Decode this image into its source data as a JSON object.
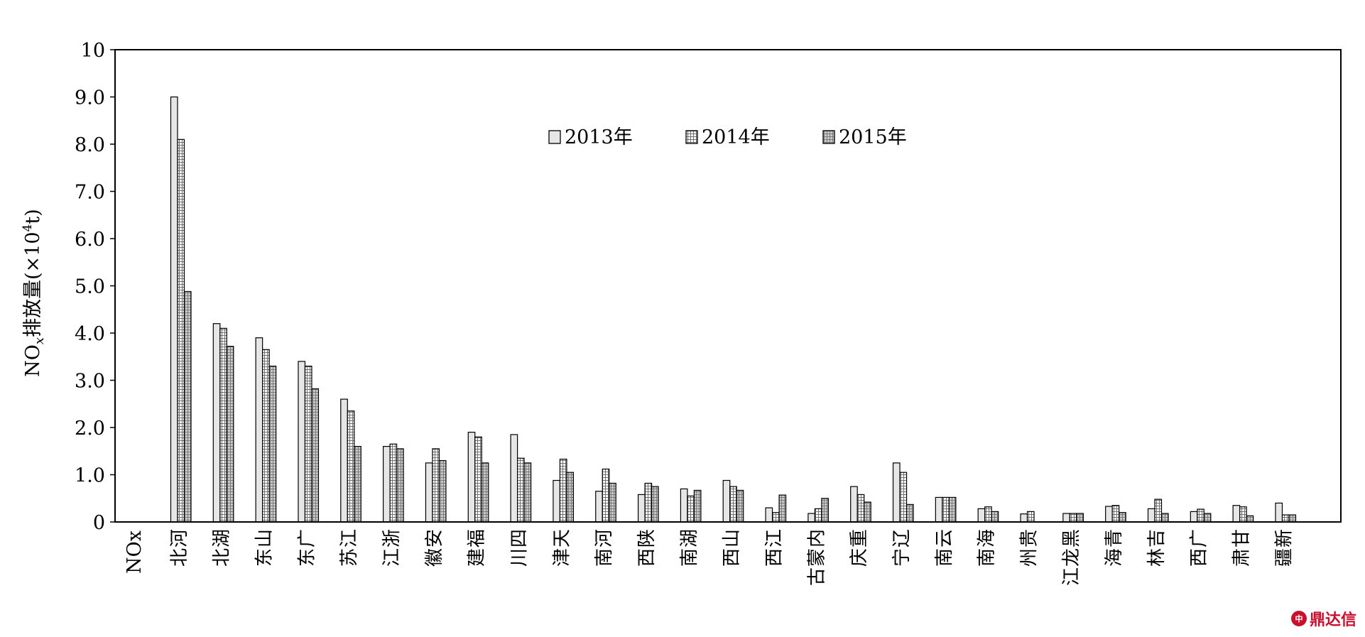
{
  "chart_data": {
    "type": "bar",
    "ylabel_main": "NO",
    "ylabel_sub": "x",
    "ylabel_rest": "排放量(×10",
    "ylabel_sup": "4",
    "ylabel_end": "t)",
    "ylim": [
      0,
      10
    ],
    "yticks": [
      "0",
      "1.0",
      "2.0",
      "3.0",
      "4.0",
      "5.0",
      "6.0",
      "7.0",
      "8.0",
      "9.0",
      "10"
    ],
    "first_label": "NOx",
    "categories": [
      "河北",
      "湖北",
      "山东",
      "广东",
      "江苏",
      "浙江",
      "安徽",
      "福建",
      "四川",
      "天津",
      "河南",
      "陕西",
      "湖南",
      "山西",
      "江西",
      "内蒙古",
      "重庆",
      "辽宁",
      "云南",
      "海南",
      "贵州",
      "黑龙江",
      "青海",
      "吉林",
      "广西",
      "甘肃",
      "新疆"
    ],
    "legend_position": "top-center",
    "series": [
      {
        "name": "2013年",
        "color": "#d9d9d9",
        "values": [
          9.0,
          4.2,
          3.9,
          3.4,
          2.6,
          1.6,
          1.25,
          1.9,
          1.85,
          0.88,
          0.65,
          0.58,
          0.7,
          0.88,
          0.3,
          0.18,
          0.75,
          1.25,
          0.52,
          0.28,
          0.17,
          0.18,
          0.33,
          0.28,
          0.22,
          0.35,
          0.4
        ]
      },
      {
        "name": "2014年",
        "color": "#bdbdbd",
        "values": [
          8.1,
          4.1,
          3.65,
          3.3,
          2.35,
          1.65,
          1.55,
          1.8,
          1.35,
          1.33,
          1.12,
          0.82,
          0.55,
          0.75,
          0.2,
          0.28,
          0.58,
          1.05,
          0.52,
          0.32,
          0.22,
          0.18,
          0.35,
          0.48,
          0.27,
          0.32,
          0.15
        ]
      },
      {
        "name": "2015年",
        "color": "#a6a6a6",
        "values": [
          4.88,
          3.72,
          3.3,
          2.82,
          1.6,
          1.55,
          1.3,
          1.25,
          1.25,
          1.05,
          0.82,
          0.75,
          0.67,
          0.67,
          0.57,
          0.5,
          0.42,
          0.37,
          0.52,
          0.22,
          0.0,
          0.18,
          0.2,
          0.18,
          0.18,
          0.13,
          0.15
        ]
      }
    ]
  },
  "watermark": {
    "text": "鼎达信",
    "logo_glyph": "中"
  }
}
